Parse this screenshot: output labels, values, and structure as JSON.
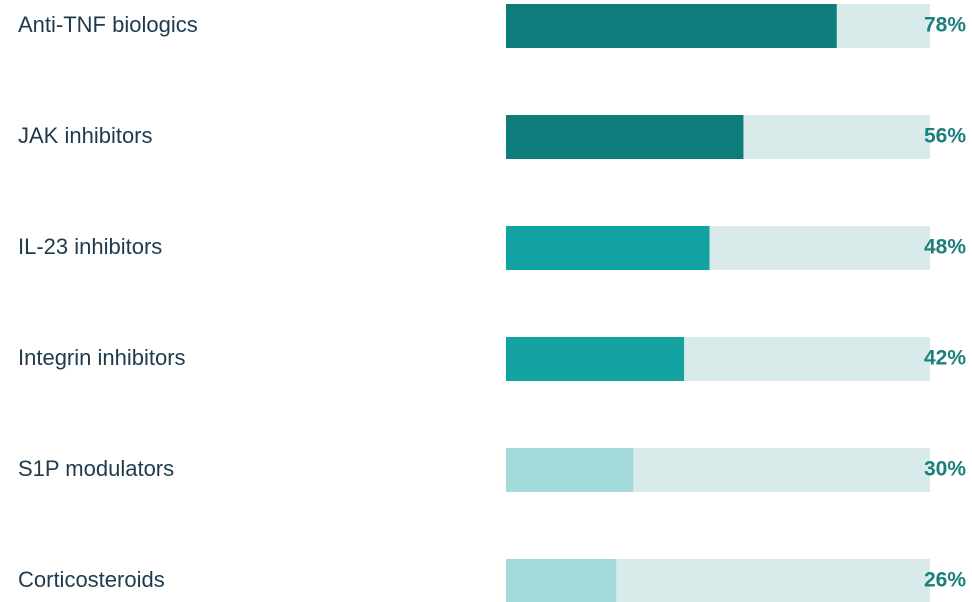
{
  "chart_data": {
    "type": "bar",
    "orientation": "horizontal",
    "categories": [
      "Anti-TNF biologics",
      "JAK inhibitors",
      "IL-23 inhibitors",
      "Integrin inhibitors",
      "S1P modulators",
      "Corticosteroids"
    ],
    "values": [
      78,
      56,
      48,
      42,
      30,
      26
    ],
    "value_labels": [
      "78%",
      "56%",
      "48%",
      "42%",
      "30%",
      "26%"
    ],
    "colors": [
      "#0e7c7b",
      "#0e7c7b",
      "#14a3a3",
      "#14a3a3",
      "#a2dad9",
      "#a2dad9"
    ],
    "track_color": "#d9eaea",
    "xlim": [
      0,
      100
    ]
  }
}
